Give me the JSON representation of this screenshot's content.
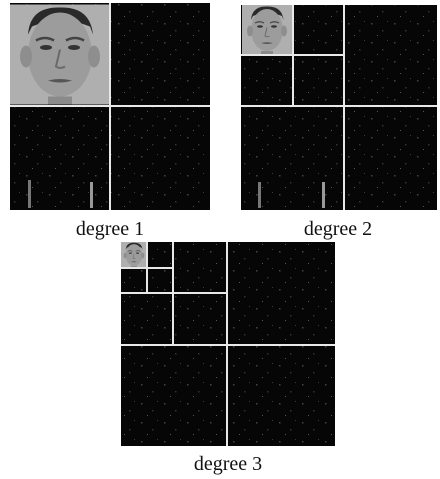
{
  "figure": {
    "captions": [
      "degree 1",
      "degree 2",
      "degree 3"
    ]
  }
}
